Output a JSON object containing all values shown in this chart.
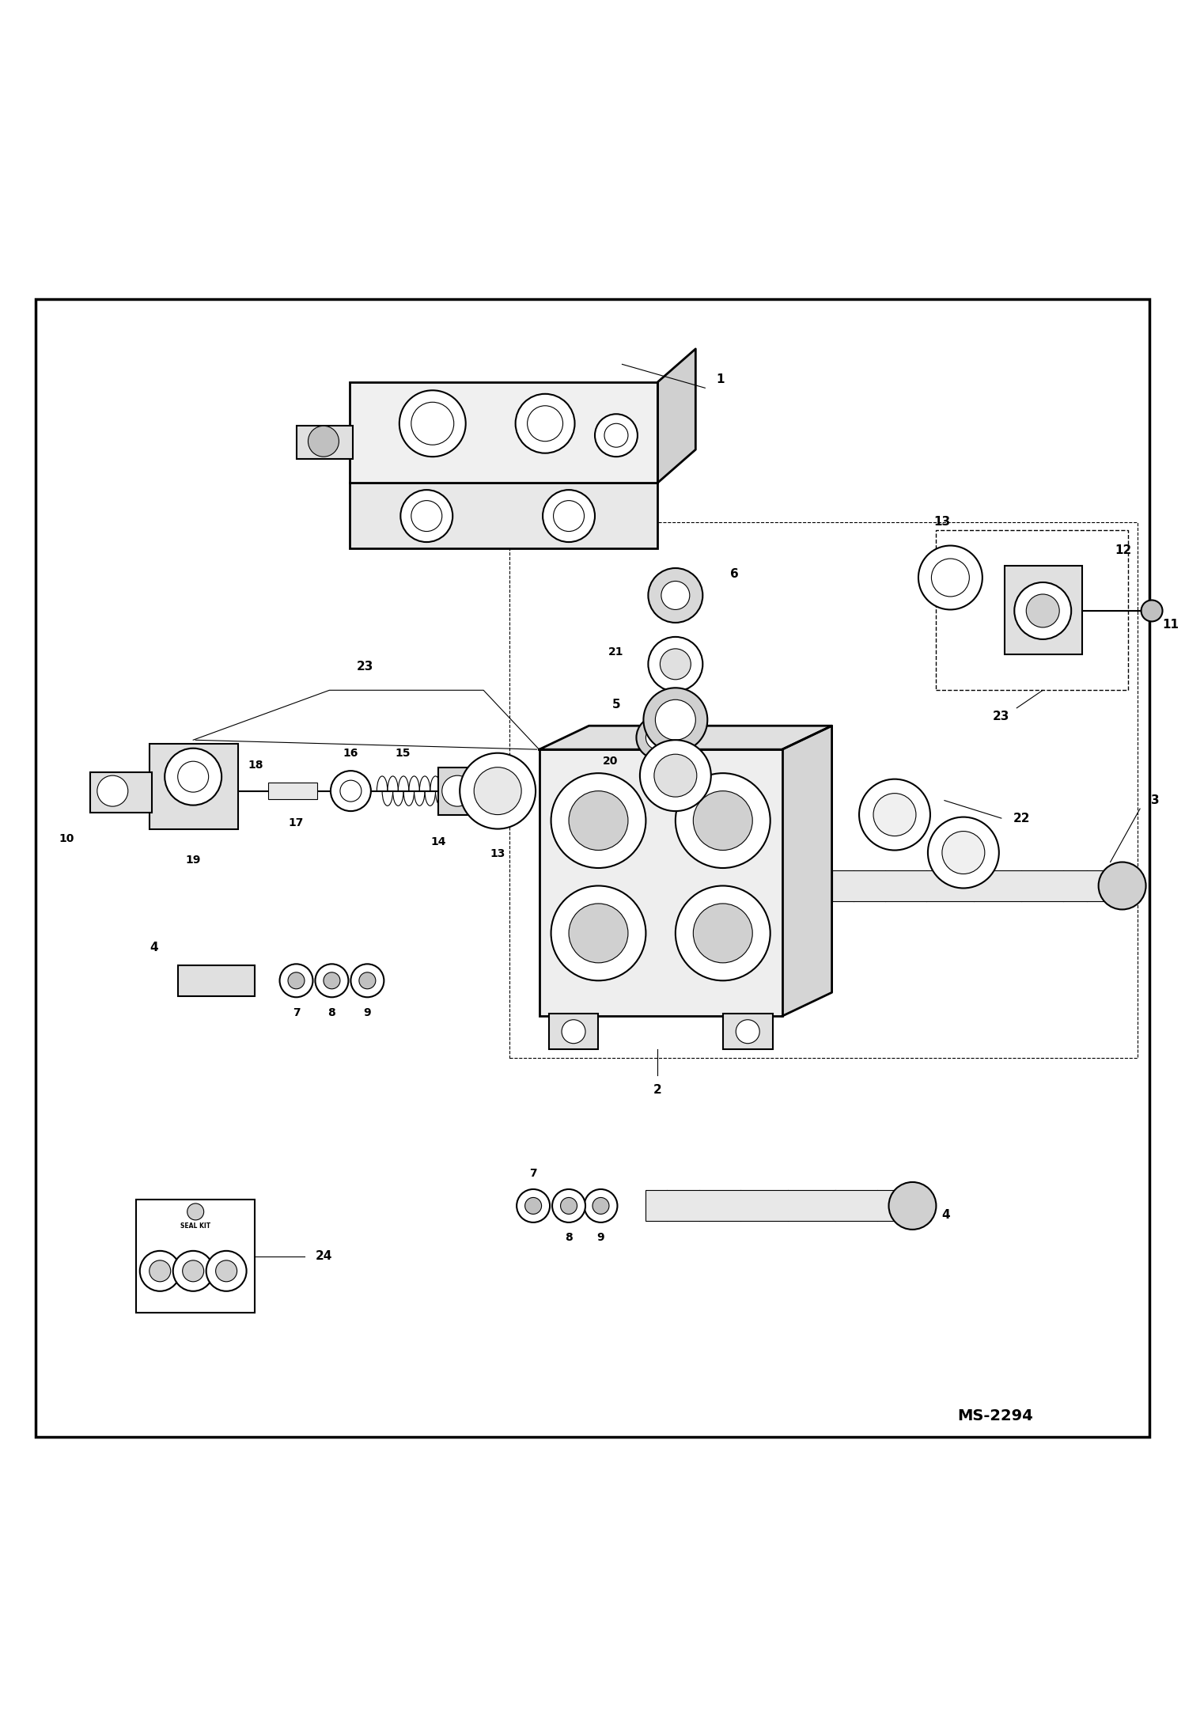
{
  "bg_color": "#ffffff",
  "border_color": "#000000",
  "line_color": "#000000",
  "text_color": "#000000",
  "page_id": "MS-2294",
  "fig_width": 14.98,
  "fig_height": 21.94
}
